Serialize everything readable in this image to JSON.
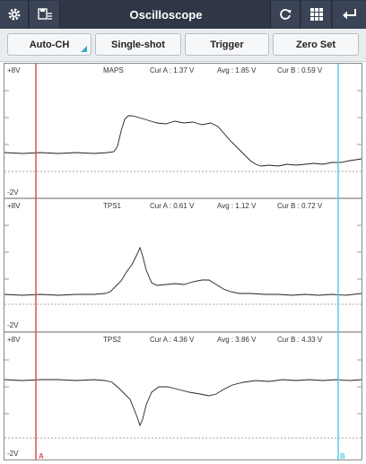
{
  "header": {
    "title": "Oscilloscope",
    "left_icons": [
      "gear-icon",
      "save-list-icon"
    ],
    "right_icons": [
      "refresh-icon",
      "grid-icon",
      "back-icon"
    ]
  },
  "toolbar": {
    "auto_ch": "Auto-CH",
    "single_shot": "Single-shot",
    "trigger": "Trigger",
    "zero_set": "Zero Set"
  },
  "channels": [
    {
      "name": "MAPS",
      "max": "+8V",
      "min": "-2V",
      "cur_a": "Cur A : 1.37 V",
      "avg": "Avg : 1.85 V",
      "cur_b": "Cur B : 0.59 V"
    },
    {
      "name": "TPS1",
      "max": "+8V",
      "min": "-2V",
      "cur_a": "Cur A : 0.61 V",
      "avg": "Avg : 1.12 V",
      "cur_b": "Cur B : 0.72 V"
    },
    {
      "name": "TPS2",
      "max": "+8V",
      "min": "-2V",
      "cur_a": "Cur A : 4.36 V",
      "avg": "Avg : 3.86 V",
      "cur_b": "Cur B : 4.33 V"
    }
  ],
  "cursors": {
    "a_label": "A",
    "b_label": "B",
    "a_color": "#d9534f",
    "b_color": "#5bc8e6"
  },
  "colors": {
    "header_bg": "#2f3747",
    "trace": "#222222"
  }
}
